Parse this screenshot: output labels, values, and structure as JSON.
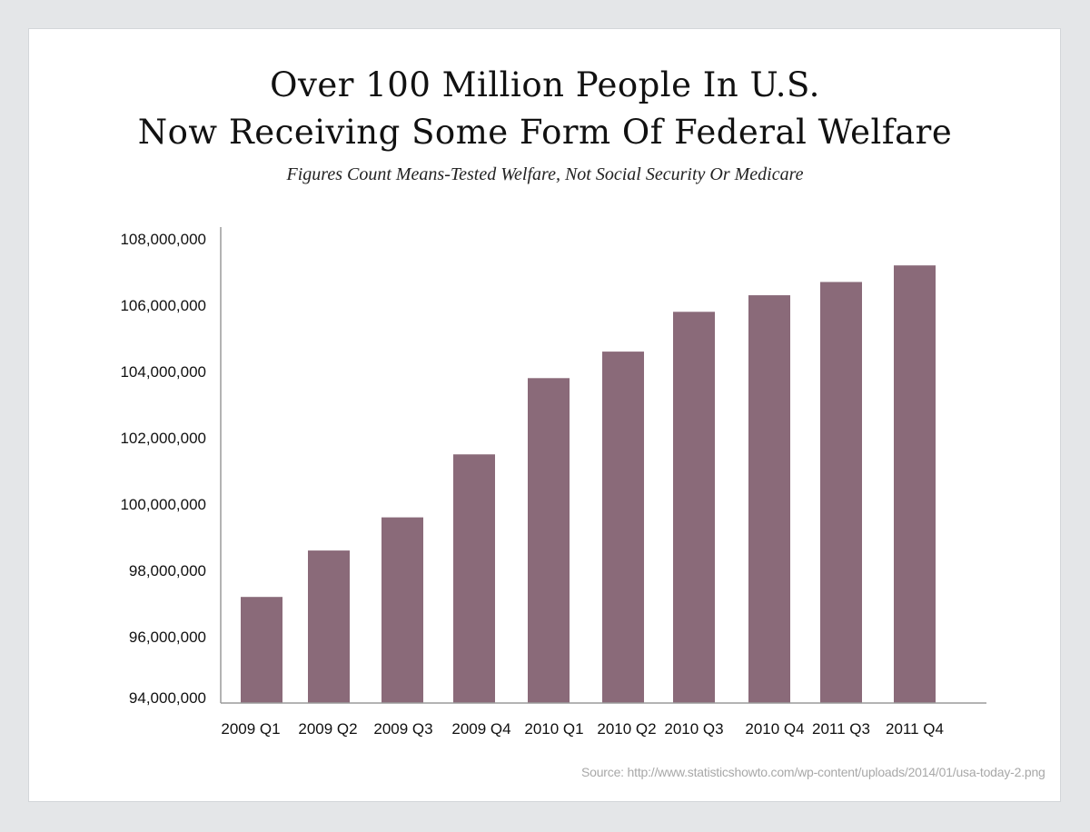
{
  "title_line1": "Over 100 Million People In U.S.",
  "title_line2": "Now Receiving Some Form Of Federal Welfare",
  "subtitle": "Figures Count Means-Tested Welfare, Not Social Security Or Medicare",
  "source": "Source: http://www.statisticshowto.com/wp-content/uploads/2014/01/usa-today-2.png",
  "chart_data": {
    "type": "bar",
    "title": "Over 100 Million People In U.S. Now Receiving Some Form Of Federal Welfare",
    "subtitle": "Figures Count Means-Tested Welfare, Not Social Security Or Medicare",
    "categories": [
      "2009 Q1",
      "2009 Q2",
      "2009 Q3",
      "2009 Q4",
      "2010 Q1",
      "2010 Q2",
      "2010 Q3",
      "2010 Q4",
      "2011 Q3",
      "2011 Q4"
    ],
    "values": [
      97200000,
      98600000,
      99600000,
      101500000,
      103800000,
      104600000,
      105800000,
      106300000,
      106700000,
      107200000
    ],
    "xlabel": "",
    "ylabel": "",
    "ylim": [
      94000000,
      108000000
    ],
    "yticks": [
      94000000,
      96000000,
      98000000,
      100000000,
      102000000,
      104000000,
      106000000,
      108000000
    ],
    "ytick_labels": [
      "94,000,000",
      "96,000,000",
      "98,000,000",
      "100,000,000",
      "102,000,000",
      "104,000,000",
      "106,000,000",
      "108,000,000"
    ],
    "grid": false,
    "bar_color": "#8a6a79"
  }
}
